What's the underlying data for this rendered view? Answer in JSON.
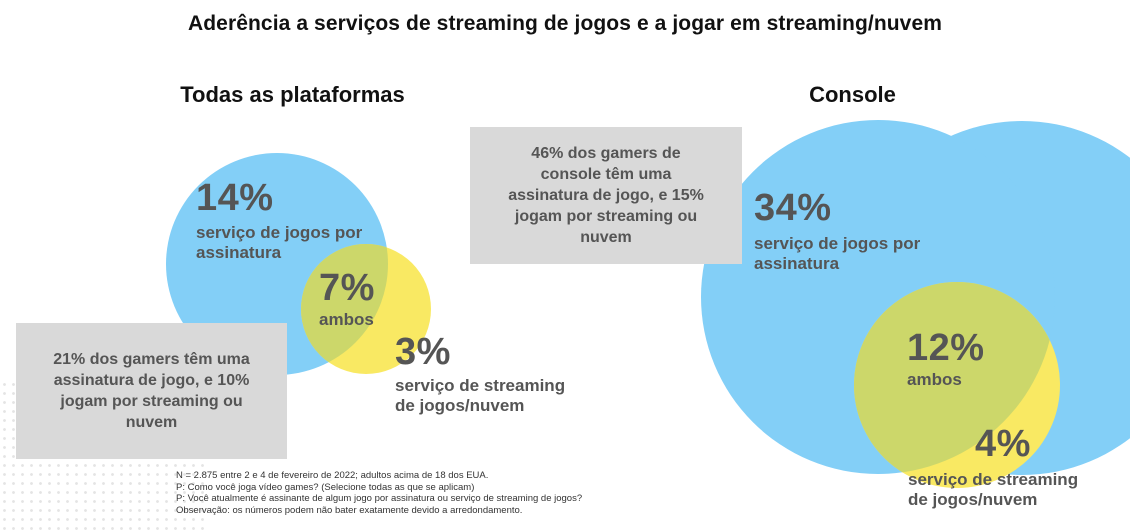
{
  "title": "Aderência a serviços de streaming de jogos e a jogar em streaming/nuvem",
  "colors": {
    "subscription_circle": "#83cff7",
    "streaming_circle": "#f9e963",
    "overlap": "#ccd76a",
    "note_box": "#d9d9d9",
    "text_gray": "#555555"
  },
  "panels": {
    "all_platforms": {
      "title": "Todas as plataformas",
      "subscription": {
        "value": "14%",
        "label_line1": "serviço de jogos por",
        "label_line2": "assinatura"
      },
      "both": {
        "value": "7%",
        "label": "ambos"
      },
      "streaming": {
        "value": "3%",
        "label_line1": "serviço de streaming",
        "label_line2": "de jogos/nuvem"
      },
      "note": {
        "line1": "21% dos gamers têm uma",
        "line2": "assinatura de jogo, e 10%",
        "line3": "jogam por streaming ou",
        "line4": "nuvem"
      }
    },
    "console": {
      "title": "Console",
      "subscription": {
        "value": "34%",
        "label_line1": "serviço de jogos por",
        "label_line2": "assinatura"
      },
      "both": {
        "value": "12%",
        "label": "ambos"
      },
      "streaming": {
        "value": "4%",
        "label_line1": "serviço de streaming",
        "label_line2": "de jogos/nuvem"
      },
      "note": {
        "line1": "46% dos gamers de",
        "line2": "console têm uma",
        "line3": "assinatura de jogo, e 15%",
        "line4": "jogam por streaming ou",
        "line5": "nuvem"
      }
    }
  },
  "footnotes": {
    "line1": "N = 2.875 entre 2 e 4 de fevereiro de 2022; adultos acima de 18 dos EUA.",
    "line2": "P: Como você joga vídeo games? (Selecione todas as que se aplicam)",
    "line3": "P: Você atualmente é assinante de algum jogo por assinatura ou serviço de streaming de jogos?",
    "line4": "Observação: os números podem não bater exatamente devido a arredondamento."
  }
}
